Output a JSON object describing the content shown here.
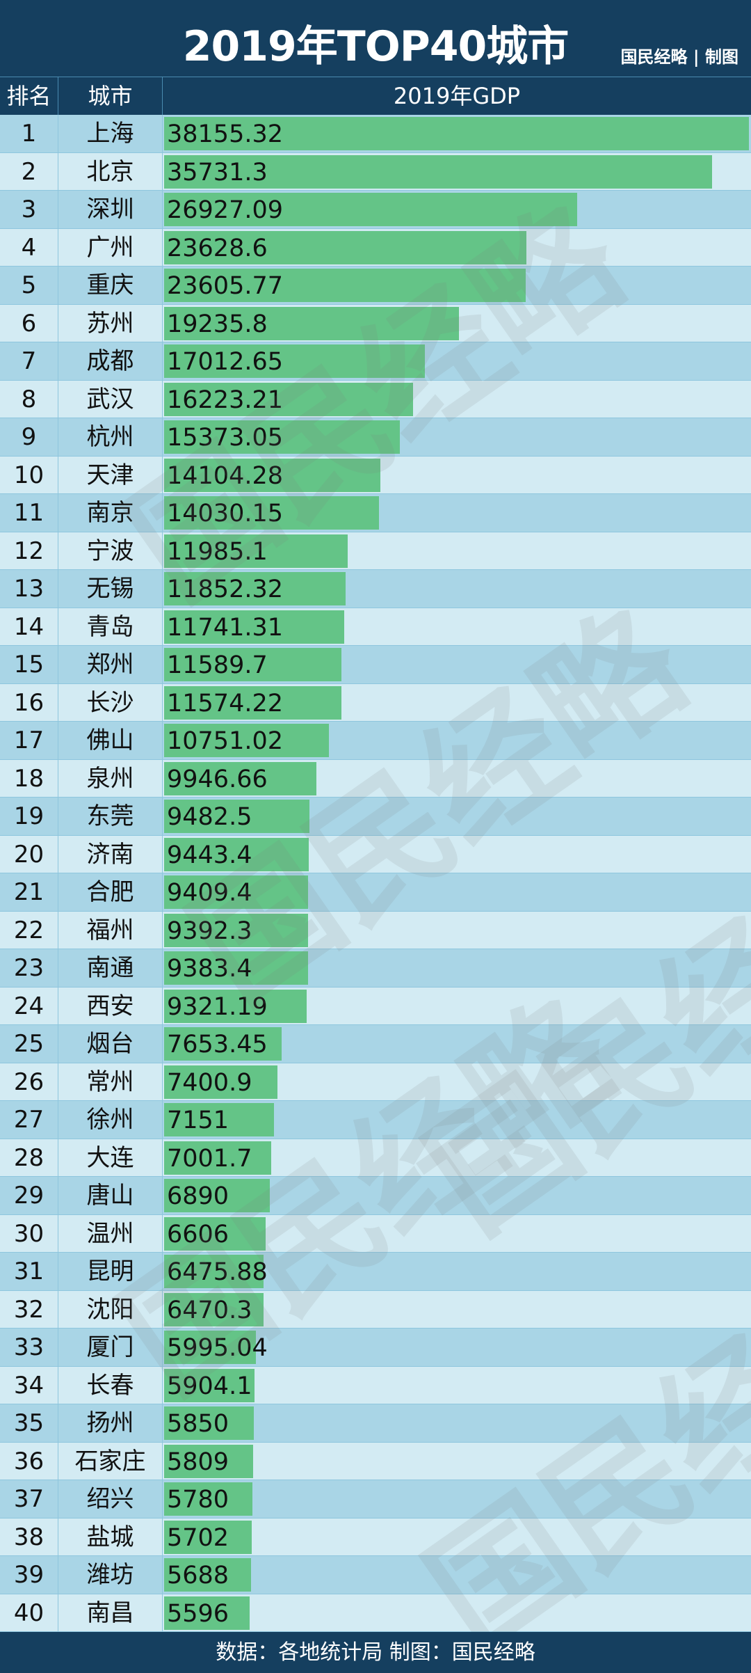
{
  "title": "2019年TOP40城市",
  "credit": "国民经略 | 制图",
  "columns": {
    "rank": "排名",
    "city": "城市",
    "gdp": "2019年GDP"
  },
  "footer": "数据：各地统计局 制图：国民经略",
  "watermark": "国民经略",
  "colors": {
    "header": "#153f5f",
    "row_odd": "#a9d5e6",
    "row_even": "#d3ebf3",
    "bar": "#64c487"
  },
  "chart_data": {
    "type": "bar",
    "title": "2019年TOP40城市",
    "ylabel": "2019年GDP",
    "orientation": "horizontal",
    "categories": [
      "上海",
      "北京",
      "深圳",
      "广州",
      "重庆",
      "苏州",
      "成都",
      "武汉",
      "杭州",
      "天津",
      "南京",
      "宁波",
      "无锡",
      "青岛",
      "郑州",
      "长沙",
      "佛山",
      "泉州",
      "东莞",
      "济南",
      "合肥",
      "福州",
      "南通",
      "西安",
      "烟台",
      "常州",
      "徐州",
      "大连",
      "唐山",
      "温州",
      "昆明",
      "沈阳",
      "厦门",
      "长春",
      "扬州",
      "石家庄",
      "绍兴",
      "盐城",
      "潍坊",
      "南昌"
    ],
    "values": [
      "38155.32",
      "35731.3",
      "26927.09",
      "23628.6",
      "23605.77",
      "19235.8",
      "17012.65",
      "16223.21",
      "15373.05",
      "14104.28",
      "14030.15",
      "11985.1",
      "11852.32",
      "11741.31",
      "11589.7",
      "11574.22",
      "10751.02",
      "9946.66",
      "9482.5",
      "9443.4",
      "9409.4",
      "9392.3",
      "9383.4",
      "9321.19",
      "7653.45",
      "7400.9",
      "7151",
      "7001.7",
      "6890",
      "6606",
      "6475.88",
      "6470.3",
      "5995.04",
      "5904.1",
      "5850",
      "5809",
      "5780",
      "5702",
      "5688",
      "5596"
    ]
  }
}
